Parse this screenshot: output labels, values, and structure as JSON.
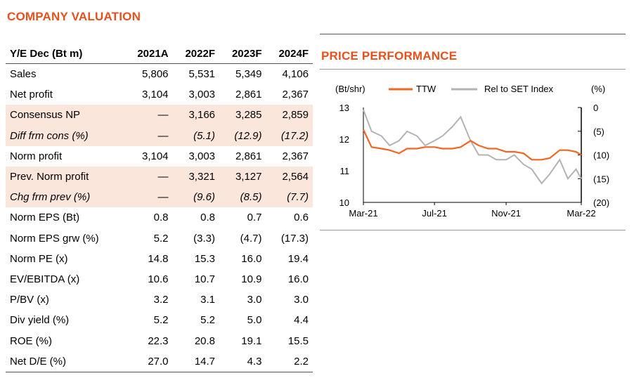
{
  "valuation": {
    "title": "COMPANY VALUATION",
    "header": [
      "Y/E Dec (Bt m)",
      "2021A",
      "2022F",
      "2023F",
      "2024F"
    ],
    "rows": [
      {
        "label": "Sales",
        "values": [
          "5,806",
          "5,531",
          "5,349",
          "4,106"
        ],
        "style": ""
      },
      {
        "label": "Net profit",
        "values": [
          "3,104",
          "3,003",
          "2,861",
          "2,367"
        ],
        "style": ""
      },
      {
        "label": "Consensus NP",
        "values": [
          "—",
          "3,166",
          "3,285",
          "2,859"
        ],
        "style": "shade"
      },
      {
        "label": "Diff frm cons (%)",
        "values": [
          "—",
          "(5.1)",
          "(12.9)",
          "(17.2)"
        ],
        "style": "shade it"
      },
      {
        "label": "Norm profit",
        "values": [
          "3,104",
          "3,003",
          "2,861",
          "2,367"
        ],
        "style": ""
      },
      {
        "label": "Prev. Norm profit",
        "values": [
          "—",
          "3,321",
          "3,127",
          "2,564"
        ],
        "style": "shade"
      },
      {
        "label": "Chg frm prev (%)",
        "values": [
          "—",
          "(9.6)",
          "(8.5)",
          "(7.7)"
        ],
        "style": "shade it"
      },
      {
        "label": "Norm EPS (Bt)",
        "values": [
          "0.8",
          "0.8",
          "0.7",
          "0.6"
        ],
        "style": ""
      },
      {
        "label": "Norm EPS grw (%)",
        "values": [
          "5.2",
          "(3.3)",
          "(4.7)",
          "(17.3)"
        ],
        "style": ""
      },
      {
        "label": "Norm PE (x)",
        "values": [
          "14.8",
          "15.3",
          "16.0",
          "19.4"
        ],
        "style": ""
      },
      {
        "label": "EV/EBITDA (x)",
        "values": [
          "10.6",
          "10.7",
          "10.9",
          "16.0"
        ],
        "style": ""
      },
      {
        "label": "P/BV (x)",
        "values": [
          "3.2",
          "3.1",
          "3.0",
          "3.0"
        ],
        "style": ""
      },
      {
        "label": "Div yield (%)",
        "values": [
          "5.2",
          "5.2",
          "5.0",
          "4.4"
        ],
        "style": ""
      },
      {
        "label": "ROE (%)",
        "values": [
          "22.3",
          "20.8",
          "19.1",
          "15.5"
        ],
        "style": ""
      },
      {
        "label": "Net D/E (%)",
        "values": [
          "27.0",
          "14.7",
          "4.3",
          "2.2"
        ],
        "style": ""
      }
    ]
  },
  "performance": {
    "title": "PRICE PERFORMANCE"
  },
  "chart_data": {
    "type": "line",
    "left_axis_label": "(Bt/shr)",
    "right_axis_label": "(%)",
    "x_ticks": [
      "Mar-21",
      "Jul-21",
      "Nov-21",
      "Mar-22"
    ],
    "y_left_ticks": [
      "13",
      "12",
      "11",
      "10"
    ],
    "y_left_range": [
      10,
      13
    ],
    "y_right_ticks": [
      "0",
      "(5)",
      "(10)",
      "(15)",
      "(20)"
    ],
    "y_right_range": [
      -20,
      0
    ],
    "colors": {
      "TTW": "#f26522",
      "Rel to SET Index": "#b3b3b3"
    },
    "series": [
      {
        "name": "TTW",
        "axis": "left",
        "x": [
          "2021-03-01",
          "2021-03-15",
          "2021-04-01",
          "2021-04-15",
          "2021-05-01",
          "2021-05-15",
          "2021-06-01",
          "2021-06-15",
          "2021-07-01",
          "2021-07-15",
          "2021-08-01",
          "2021-08-15",
          "2021-09-01",
          "2021-09-15",
          "2021-10-01",
          "2021-10-15",
          "2021-11-01",
          "2021-11-15",
          "2021-12-01",
          "2021-12-15",
          "2022-01-01",
          "2022-01-15",
          "2022-02-01",
          "2022-02-15",
          "2022-03-01",
          "2022-03-10"
        ],
        "values": [
          12.3,
          11.75,
          11.7,
          11.65,
          11.55,
          11.7,
          11.7,
          11.75,
          11.75,
          11.7,
          11.7,
          11.75,
          11.95,
          11.8,
          11.7,
          11.7,
          11.6,
          11.6,
          11.55,
          11.35,
          11.35,
          11.4,
          11.65,
          11.65,
          11.6,
          11.5
        ]
      },
      {
        "name": "Rel to SET Index",
        "axis": "right",
        "x": [
          "2021-03-01",
          "2021-03-15",
          "2021-04-01",
          "2021-04-15",
          "2021-05-01",
          "2021-05-15",
          "2021-06-01",
          "2021-06-15",
          "2021-07-01",
          "2021-07-15",
          "2021-08-01",
          "2021-08-15",
          "2021-09-01",
          "2021-09-15",
          "2021-10-01",
          "2021-10-15",
          "2021-11-01",
          "2021-11-15",
          "2021-12-01",
          "2021-12-15",
          "2022-01-01",
          "2022-01-15",
          "2022-02-01",
          "2022-02-15",
          "2022-03-01",
          "2022-03-10"
        ],
        "values": [
          -0.5,
          -5,
          -6,
          -8,
          -7,
          -5,
          -6,
          -8,
          -7,
          -6,
          -4,
          -2,
          -7,
          -10,
          -10,
          -11,
          -11,
          -10,
          -12,
          -13,
          -16,
          -14,
          -11,
          -15,
          -13,
          -15
        ]
      }
    ]
  }
}
